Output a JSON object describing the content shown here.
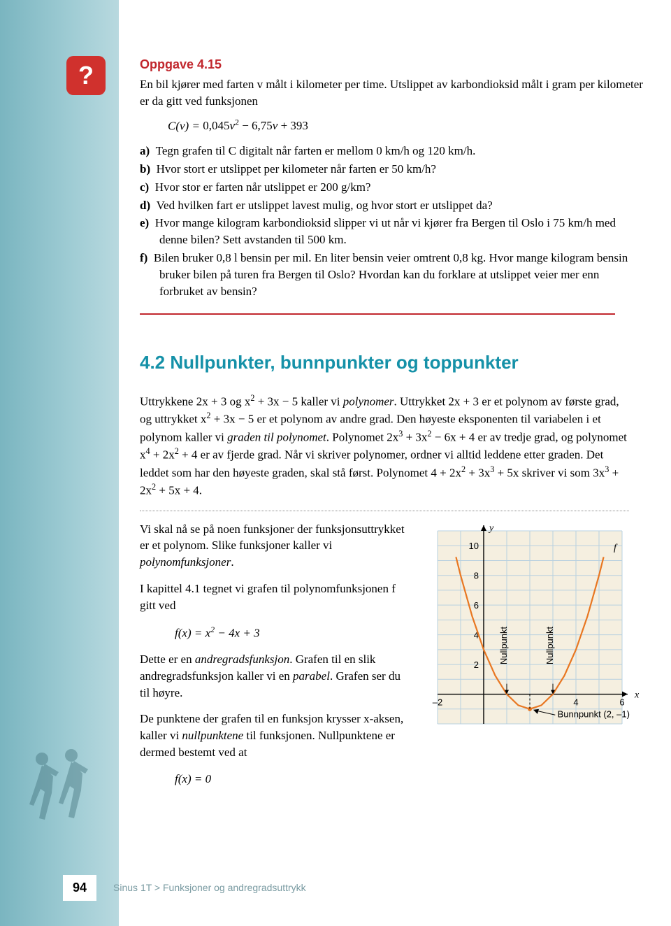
{
  "badge": "?",
  "oppgave": {
    "title": "Oppgave 4.15",
    "intro1": "En bil kjører med farten  v  målt i kilometer per time. Utslippet av karbon­dioksid målt i gram per kilometer er da gitt ved funksjonen",
    "formula_lhs": "C(v) = ",
    "formula_rhs": "0,045v² − 6,75v + 393",
    "items": {
      "a": "Tegn grafen til  C  digitalt når farten er mellom 0 km/h og 120 km/h.",
      "b": "Hvor stort er utslippet per kilometer når farten er 50 km/h?",
      "c": "Hvor stor er farten når utslippet er 200 g/km?",
      "d": "Ved hvilken fart er utslippet lavest mulig, og hvor stort er utslippet da?",
      "e": "Hvor mange kilogram karbondioksid slipper vi ut når vi kjører fra Bergen til Oslo i 75 km/h med denne bilen? Sett avstanden til 500 km.",
      "f": "Bilen bruker 0,8 l bensin per mil. En liter bensin veier omtrent 0,8 kg. Hvor mange kilogram bensin bruker bilen på turen fra Bergen til Oslo? Hvordan kan du forklare at utslippet veier mer enn forbruket av bensin?"
    }
  },
  "section": {
    "title": "4.2 Nullpunkter, bunnpunkter og toppunkter",
    "p1_a": "Uttrykkene  2x + 3 og x",
    "p1_b": " + 3x − 5  kaller vi ",
    "p1_poly": "polynomer",
    "p1_c": ". Uttrykket  2x + 3  er et polynom av første grad, og uttrykket  x",
    "p1_d": " + 3x − 5  er et polynom av andre grad. Den høyeste eksponenten til variabelen i et polynom kaller vi ",
    "p1_grad": "graden til polynomet",
    "p1_e": ". Polynomet  2x",
    "p1_f": " + 3x",
    "p1_g": " − 6x + 4  er av tredje grad, og polynomet x",
    "p1_h": " + 2x",
    "p1_i": " + 4  er av fjerde grad. Når vi skriver polynomer, ordner vi alltid leddene etter graden. Det leddet som har den høyeste graden, skal stå først. Polynomet  4 + 2x",
    "p1_j": " + 3x",
    "p1_k": " + 5x  skriver vi som  3x",
    "p1_l": " + 2x",
    "p1_m": " + 5x + 4.",
    "p2_a": "Vi skal nå se på noen funksjoner der funksjonsuttrykket er et polynom. Slike funksjoner kaller vi ",
    "p2_polyfn": "polynomfunksjoner",
    "p2_b": ".",
    "p3": "I kapittel 4.1 tegnet vi grafen til polynom­funksjonen  f  gitt ved",
    "fn_formula": "f(x) = x² − 4x + 3",
    "p4_a": "Dette er en ",
    "p4_andre": "andregradsfunksjon",
    "p4_b": ". Grafen til en slik andregradsfunksjon kaller vi en ",
    "p4_par": "parabel",
    "p4_c": ". Grafen ser du til høyre.",
    "p5_a": "De punktene der grafen til en funksjon krysser x-aksen, kaller vi ",
    "p5_null": "nullpunktene",
    "p5_b": " til funksjonen. Nullpunktene er dermed bestemt ved at",
    "fn_zero": "f(x) = 0"
  },
  "chart": {
    "type": "line",
    "xlim": [
      -2,
      6
    ],
    "ylim": [
      -2,
      11
    ],
    "xticks": [
      -2,
      4,
      6
    ],
    "yticks": [
      2,
      4,
      6,
      8,
      10
    ],
    "x_axis_label": "x",
    "y_axis_label": "y",
    "curve_label": "f",
    "curve_color": "#e87722",
    "grid_color": "#b8d0e0",
    "background_color": "#f5efe0",
    "axis_color": "#000000",
    "font_family": "Arial",
    "nullpunkt_label": "Nullpunkt",
    "bunn_label": "Bunnpunkt (2, –1)",
    "nullpunkter_x": [
      1,
      3
    ],
    "bunnpunkt": [
      2,
      -1
    ],
    "function": "x^2 - 4x + 3",
    "samples": [
      [
        -1.2,
        9.24
      ],
      [
        -1,
        8
      ],
      [
        -0.5,
        5.25
      ],
      [
        0,
        3
      ],
      [
        0.5,
        1.25
      ],
      [
        1,
        0
      ],
      [
        1.5,
        -0.75
      ],
      [
        2,
        -1
      ],
      [
        2.5,
        -0.75
      ],
      [
        3,
        0
      ],
      [
        3.5,
        1.25
      ],
      [
        4,
        3
      ],
      [
        4.5,
        5.25
      ],
      [
        5,
        8
      ],
      [
        5.2,
        9.24
      ]
    ]
  },
  "footer": {
    "page": "94",
    "crumb": "Sinus 1T  >  Funksjoner og andregradsuttrykk"
  },
  "colors": {
    "sidebar_from": "#7ab5c0",
    "sidebar_to": "#b8d9df",
    "badge_bg": "#d0312d",
    "title_red": "#c1272d",
    "section_teal": "#1591a8"
  }
}
